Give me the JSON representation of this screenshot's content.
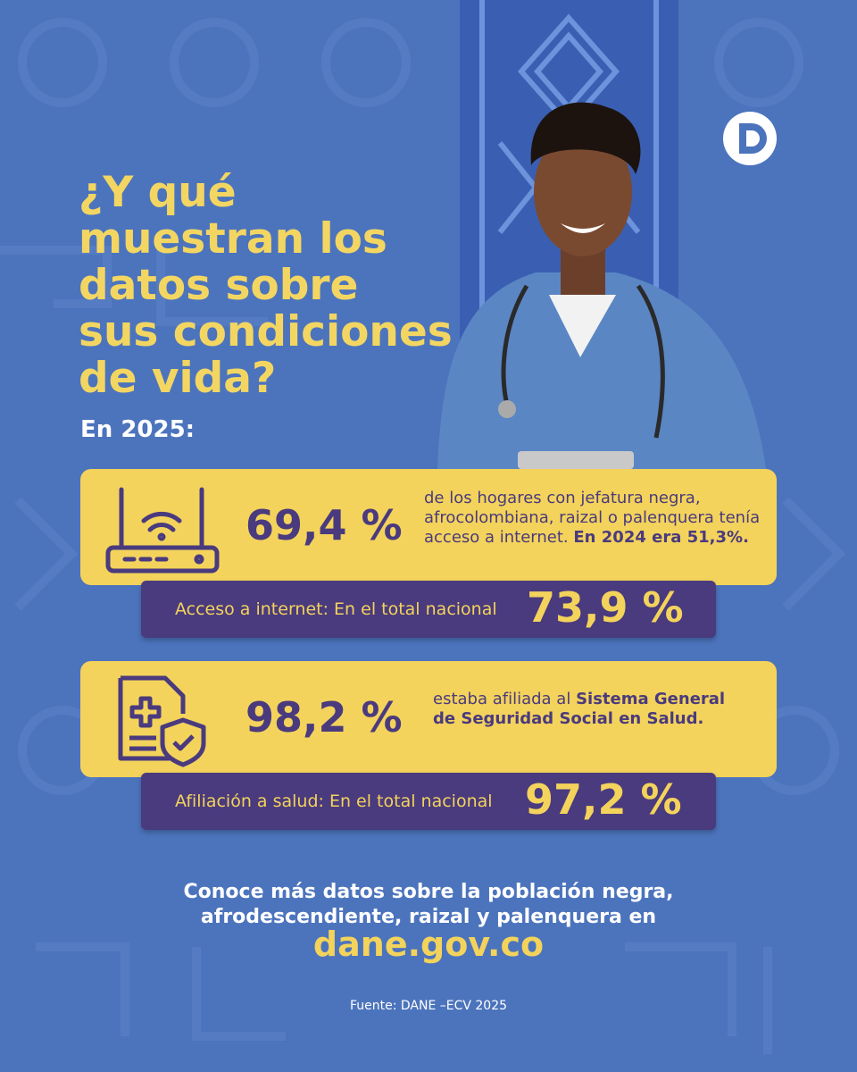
{
  "header": {
    "title_lines": [
      "¿Y qué",
      "muestran los",
      "datos sobre",
      "sus condiciones",
      "de vida?"
    ],
    "subtitle": "En 2025:"
  },
  "cards": [
    {
      "stat": "69,4 %",
      "description": "de los hogares con jefatura negra, afrocolombiana, raizal o palenquera tenía acceso a internet.",
      "note": "En 2024 era 51,3%.",
      "national_label": "Acceso a internet: En el total nacional",
      "national_value": "73,9 %"
    },
    {
      "stat": "98,2 %",
      "description": "estaba afiliada al",
      "note": "Sistema General de Seguridad Social en Salud.",
      "national_label": "Afiliación a salud: En el total nacional",
      "national_value": "97,2 %"
    }
  ],
  "footer": {
    "cta": "Conoce más datos sobre la población negra, afrodescendiente, raizal y palenquera en",
    "link": "dane.gov.co",
    "source": "Fuente: DANE –ECV 2025"
  }
}
